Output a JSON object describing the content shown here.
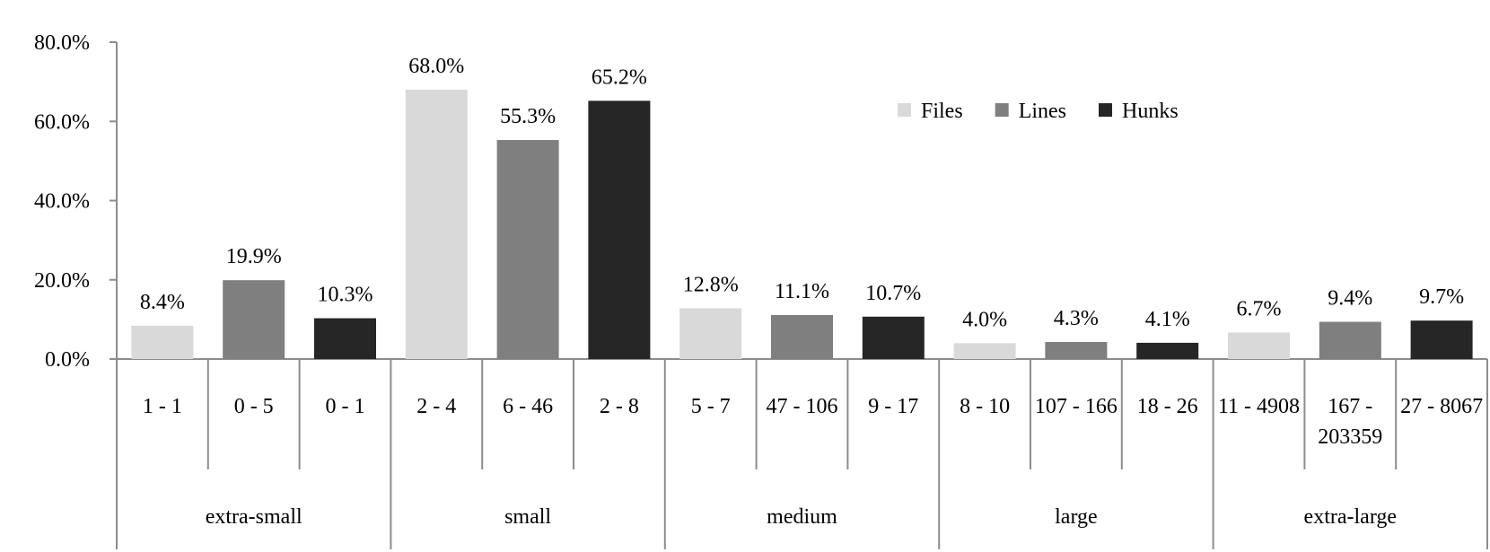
{
  "chart_data": {
    "type": "bar",
    "ylim": [
      0,
      80
    ],
    "yticks": [
      "0.0%",
      "20.0%",
      "40.0%",
      "60.0%",
      "80.0%"
    ],
    "legend_position": "top-right",
    "series": [
      {
        "name": "Files",
        "color": "#d9d9d9"
      },
      {
        "name": "Lines",
        "color": "#7f7f7f"
      },
      {
        "name": "Hunks",
        "color": "#262626"
      }
    ],
    "groups": [
      {
        "name": "extra-small",
        "bars": [
          {
            "series": "Files",
            "range": "1 - 1",
            "value": 8.4,
            "label": "8.4%"
          },
          {
            "series": "Lines",
            "range": "0 - 5",
            "value": 19.9,
            "label": "19.9%"
          },
          {
            "series": "Hunks",
            "range": "0 - 1",
            "value": 10.3,
            "label": "10.3%"
          }
        ]
      },
      {
        "name": "small",
        "bars": [
          {
            "series": "Files",
            "range": "2 - 4",
            "value": 68.0,
            "label": "68.0%"
          },
          {
            "series": "Lines",
            "range": "6 - 46",
            "value": 55.3,
            "label": "55.3%"
          },
          {
            "series": "Hunks",
            "range": "2 - 8",
            "value": 65.2,
            "label": "65.2%"
          }
        ]
      },
      {
        "name": "medium",
        "bars": [
          {
            "series": "Files",
            "range": "5 - 7",
            "value": 12.8,
            "label": "12.8%"
          },
          {
            "series": "Lines",
            "range": "47 - 106",
            "value": 11.1,
            "label": "11.1%"
          },
          {
            "series": "Hunks",
            "range": "9 - 17",
            "value": 10.7,
            "label": "10.7%"
          }
        ]
      },
      {
        "name": "large",
        "bars": [
          {
            "series": "Files",
            "range": "8 - 10",
            "value": 4.0,
            "label": "4.0%"
          },
          {
            "series": "Lines",
            "range": "107 - 166",
            "value": 4.3,
            "label": "4.3%"
          },
          {
            "series": "Hunks",
            "range": "18 - 26",
            "value": 4.1,
            "label": "4.1%"
          }
        ]
      },
      {
        "name": "extra-large",
        "bars": [
          {
            "series": "Files",
            "range": "11 - 4908",
            "value": 6.7,
            "label": "6.7%"
          },
          {
            "series": "Lines",
            "range": "167 - 203359",
            "value": 9.4,
            "label": "9.4%"
          },
          {
            "series": "Hunks",
            "range": "27 - 8067",
            "value": 9.7,
            "label": "9.7%"
          }
        ]
      }
    ]
  }
}
